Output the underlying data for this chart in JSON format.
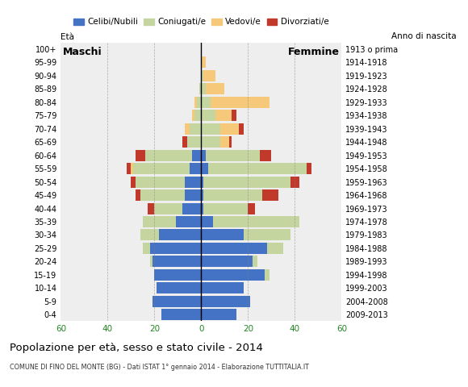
{
  "age_groups": [
    "0-4",
    "5-9",
    "10-14",
    "15-19",
    "20-24",
    "25-29",
    "30-34",
    "35-39",
    "40-44",
    "45-49",
    "50-54",
    "55-59",
    "60-64",
    "65-69",
    "70-74",
    "75-79",
    "80-84",
    "85-89",
    "90-94",
    "95-99",
    "100+"
  ],
  "birth_years": [
    "2009-2013",
    "2004-2008",
    "1999-2003",
    "1994-1998",
    "1989-1993",
    "1984-1988",
    "1979-1983",
    "1974-1978",
    "1969-1973",
    "1964-1968",
    "1959-1963",
    "1954-1958",
    "1949-1953",
    "1944-1948",
    "1939-1943",
    "1934-1938",
    "1929-1933",
    "1924-1928",
    "1919-1923",
    "1914-1918",
    "1913 o prima"
  ],
  "males": {
    "celibi": [
      17,
      21,
      19,
      20,
      21,
      22,
      18,
      11,
      8,
      7,
      7,
      5,
      4,
      0,
      0,
      0,
      0,
      0,
      0,
      0,
      0
    ],
    "coniugati": [
      0,
      0,
      0,
      0,
      1,
      3,
      8,
      14,
      12,
      19,
      21,
      24,
      20,
      6,
      5,
      3,
      2,
      1,
      0,
      0,
      0
    ],
    "vedovi": [
      0,
      0,
      0,
      0,
      0,
      0,
      0,
      0,
      0,
      0,
      0,
      1,
      0,
      0,
      2,
      1,
      1,
      0,
      0,
      0,
      0
    ],
    "divorziati": [
      0,
      0,
      0,
      0,
      0,
      0,
      0,
      0,
      3,
      2,
      2,
      2,
      4,
      2,
      0,
      0,
      0,
      0,
      0,
      0,
      0
    ]
  },
  "females": {
    "nubili": [
      15,
      21,
      18,
      27,
      22,
      28,
      18,
      5,
      1,
      1,
      1,
      3,
      2,
      0,
      0,
      0,
      0,
      0,
      0,
      0,
      0
    ],
    "coniugate": [
      0,
      0,
      0,
      2,
      2,
      7,
      20,
      37,
      19,
      25,
      37,
      42,
      23,
      8,
      8,
      6,
      4,
      2,
      1,
      0,
      0
    ],
    "vedove": [
      0,
      0,
      0,
      0,
      0,
      0,
      0,
      0,
      0,
      0,
      0,
      0,
      0,
      4,
      8,
      7,
      25,
      8,
      5,
      2,
      0
    ],
    "divorziate": [
      0,
      0,
      0,
      0,
      0,
      0,
      0,
      0,
      3,
      7,
      4,
      2,
      5,
      1,
      2,
      2,
      0,
      0,
      0,
      0,
      0
    ]
  },
  "colors": {
    "celibi_nubili": "#4472c4",
    "coniugati": "#c5d5a0",
    "vedovi": "#f5c87a",
    "divorziati": "#c0392b"
  },
  "xlim": 60,
  "title": "Popolazione per età, sesso e stato civile - 2014",
  "subtitle": "COMUNE DI FINO DEL MONTE (BG) - Dati ISTAT 1° gennaio 2014 - Elaborazione TUTTITALIA.IT",
  "legend_labels": [
    "Celibi/Nubili",
    "Coniugati/e",
    "Vedovi/e",
    "Divorziati/e"
  ],
  "label_maschi": "Maschi",
  "label_femmine": "Femmine",
  "label_eta": "Età",
  "label_anno": "Anno di nascita",
  "background_color": "#ffffff",
  "plot_bg_color": "#eeeeee"
}
